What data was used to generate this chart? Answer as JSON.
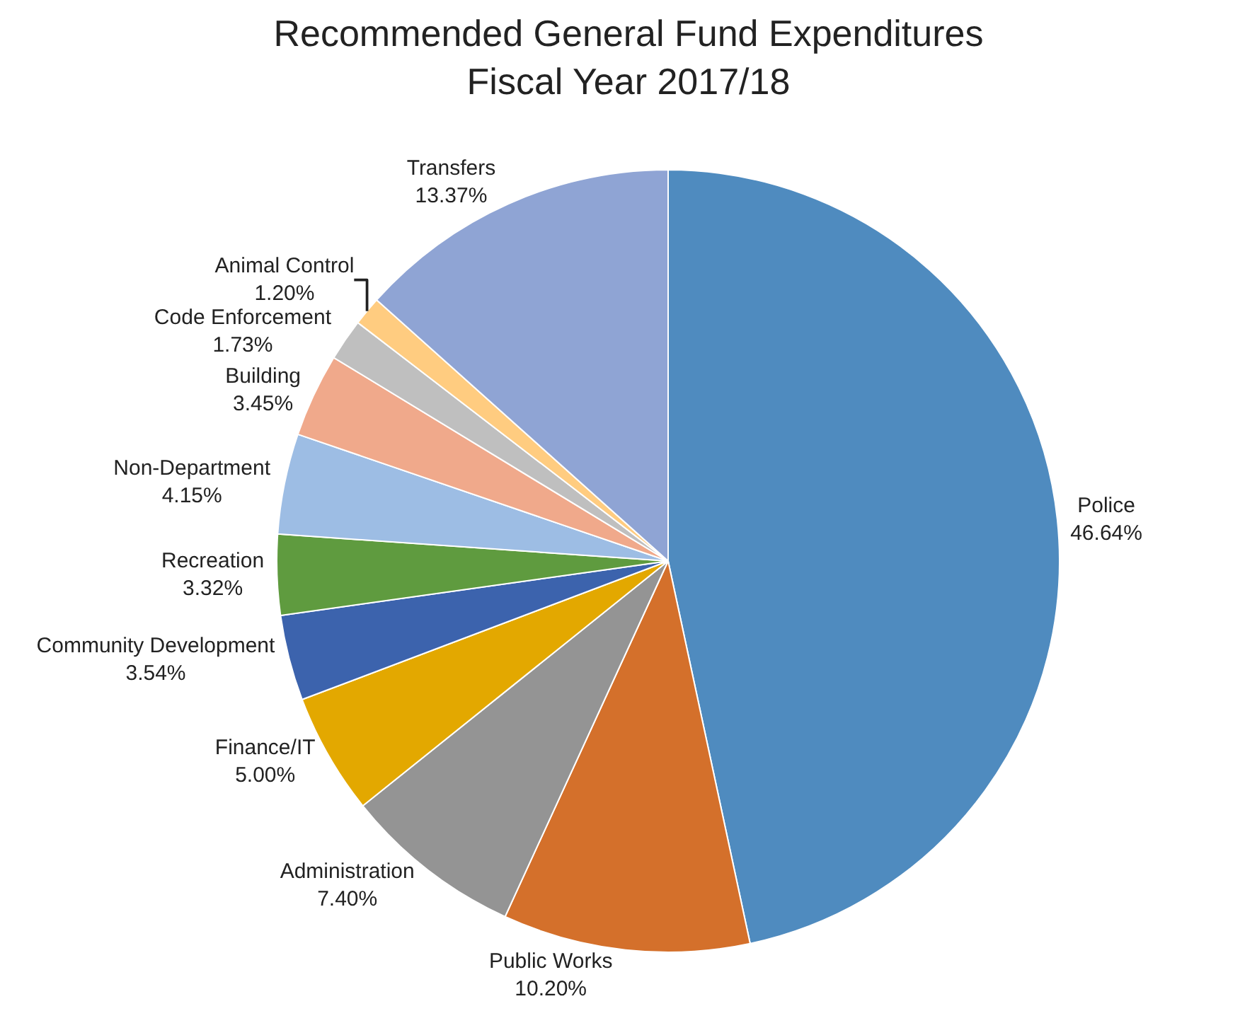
{
  "chart_data": {
    "type": "pie",
    "title": "Recommended General Fund Expenditures\nFiscal Year 2017/18",
    "categories": [
      "Police",
      "Public Works",
      "Administration",
      "Finance/IT",
      "Community Development",
      "Recreation",
      "Non-Department",
      "Building",
      "Code Enforcement",
      "Animal Control",
      "Transfers"
    ],
    "values": [
      46.64,
      10.2,
      7.4,
      5.0,
      3.54,
      3.32,
      4.15,
      3.45,
      1.73,
      1.2,
      13.37
    ],
    "value_labels": [
      "46.64%",
      "10.20%",
      "7.40%",
      "5.00%",
      "3.54%",
      "3.32%",
      "4.15%",
      "3.45%",
      "1.73%",
      "1.20%",
      "13.37%"
    ],
    "colors": [
      "#4f8bbf",
      "#d4702b",
      "#949494",
      "#e3a800",
      "#3c63ad",
      "#5f9b3f",
      "#9dbde4",
      "#f0a98b",
      "#bfbfbf",
      "#ffcc80",
      "#8fa4d4"
    ],
    "legend": false
  }
}
